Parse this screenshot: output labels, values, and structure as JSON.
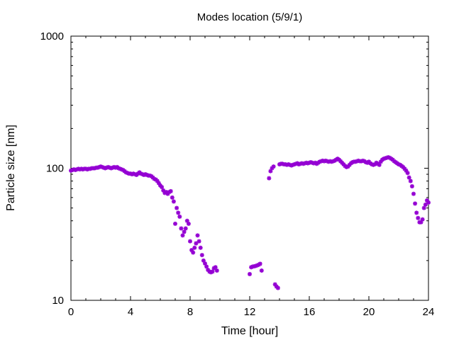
{
  "chart_data": {
    "type": "scatter",
    "title": "Modes location (5/9/1)",
    "xlabel": "Time [hour]",
    "ylabel": "Particle size [nm]",
    "xlim": [
      0,
      24
    ],
    "ylim": [
      10,
      1000
    ],
    "y_scale": "log",
    "x_ticks": [
      "0",
      "4",
      "8",
      "12",
      "16",
      "20",
      "24"
    ],
    "y_ticks": [
      "10",
      "100",
      "1000"
    ],
    "grid": false,
    "legend": "none",
    "marker_color": "#9400D3",
    "series": [
      {
        "points": [
          [
            0.0,
            96
          ],
          [
            0.1,
            97
          ],
          [
            0.2,
            98
          ],
          [
            0.3,
            97
          ],
          [
            0.4,
            98
          ],
          [
            0.5,
            99
          ],
          [
            0.6,
            98
          ],
          [
            0.7,
            99
          ],
          [
            0.8,
            98
          ],
          [
            0.9,
            99
          ],
          [
            1.0,
            99
          ],
          [
            1.1,
            98
          ],
          [
            1.2,
            99
          ],
          [
            1.3,
            99
          ],
          [
            1.4,
            100
          ],
          [
            1.5,
            100
          ],
          [
            1.6,
            100
          ],
          [
            1.7,
            101
          ],
          [
            1.8,
            101
          ],
          [
            1.9,
            102
          ],
          [
            2.0,
            103
          ],
          [
            2.1,
            102
          ],
          [
            2.2,
            101
          ],
          [
            2.3,
            100
          ],
          [
            2.4,
            101
          ],
          [
            2.5,
            102
          ],
          [
            2.6,
            101
          ],
          [
            2.7,
            100
          ],
          [
            2.8,
            101
          ],
          [
            2.9,
            102
          ],
          [
            3.0,
            101
          ],
          [
            3.1,
            102
          ],
          [
            3.2,
            100
          ],
          [
            3.3,
            99
          ],
          [
            3.4,
            98
          ],
          [
            3.5,
            97
          ],
          [
            3.6,
            95
          ],
          [
            3.7,
            93
          ],
          [
            3.8,
            92
          ],
          [
            3.9,
            91
          ],
          [
            4.0,
            91
          ],
          [
            4.1,
            90
          ],
          [
            4.2,
            91
          ],
          [
            4.3,
            90
          ],
          [
            4.4,
            89
          ],
          [
            4.5,
            91
          ],
          [
            4.6,
            93
          ],
          [
            4.7,
            91
          ],
          [
            4.8,
            90
          ],
          [
            4.9,
            89
          ],
          [
            5.0,
            90
          ],
          [
            5.1,
            89
          ],
          [
            5.2,
            88
          ],
          [
            5.3,
            88
          ],
          [
            5.4,
            87
          ],
          [
            5.5,
            85
          ],
          [
            5.6,
            83
          ],
          [
            5.7,
            82
          ],
          [
            5.8,
            80
          ],
          [
            5.9,
            77
          ],
          [
            6.0,
            74
          ],
          [
            6.1,
            72
          ],
          [
            6.2,
            68
          ],
          [
            6.3,
            65
          ],
          [
            6.4,
            66
          ],
          [
            6.5,
            64
          ],
          [
            6.6,
            66
          ],
          [
            6.7,
            67
          ],
          [
            6.8,
            60
          ],
          [
            6.9,
            56
          ],
          [
            7.0,
            38
          ],
          [
            7.1,
            50
          ],
          [
            7.2,
            46
          ],
          [
            7.3,
            43
          ],
          [
            7.4,
            35
          ],
          [
            7.5,
            31
          ],
          [
            7.6,
            33
          ],
          [
            7.7,
            35
          ],
          [
            7.8,
            40
          ],
          [
            7.9,
            38
          ],
          [
            8.0,
            28
          ],
          [
            8.1,
            24
          ],
          [
            8.2,
            23
          ],
          [
            8.3,
            25
          ],
          [
            8.4,
            27
          ],
          [
            8.5,
            31
          ],
          [
            8.6,
            28
          ],
          [
            8.7,
            25
          ],
          [
            8.8,
            22
          ],
          [
            8.9,
            20
          ],
          [
            9.0,
            19
          ],
          [
            9.1,
            18
          ],
          [
            9.2,
            17
          ],
          [
            9.3,
            16.5
          ],
          [
            9.4,
            16.3
          ],
          [
            9.5,
            16.5
          ],
          [
            9.6,
            17.5
          ],
          [
            9.7,
            17.8
          ],
          [
            9.8,
            16.8
          ],
          [
            12.0,
            15.8
          ],
          [
            12.1,
            17.8
          ],
          [
            12.2,
            18.0
          ],
          [
            12.3,
            18.1
          ],
          [
            12.4,
            18.2
          ],
          [
            12.5,
            18.4
          ],
          [
            12.6,
            18.6
          ],
          [
            12.7,
            18.9
          ],
          [
            12.8,
            16.8
          ],
          [
            13.3,
            84
          ],
          [
            13.4,
            95
          ],
          [
            13.5,
            100
          ],
          [
            13.6,
            103
          ],
          [
            13.7,
            13.2
          ],
          [
            13.8,
            12.7
          ],
          [
            13.9,
            12.4
          ],
          [
            14.0,
            107
          ],
          [
            14.1,
            108
          ],
          [
            14.2,
            108
          ],
          [
            14.3,
            107
          ],
          [
            14.4,
            107
          ],
          [
            14.5,
            106
          ],
          [
            14.6,
            107
          ],
          [
            14.7,
            106
          ],
          [
            14.8,
            105
          ],
          [
            14.9,
            106
          ],
          [
            15.0,
            107
          ],
          [
            15.1,
            108
          ],
          [
            15.2,
            109
          ],
          [
            15.3,
            107
          ],
          [
            15.4,
            108
          ],
          [
            15.5,
            109
          ],
          [
            15.6,
            108
          ],
          [
            15.7,
            109
          ],
          [
            15.8,
            110
          ],
          [
            15.9,
            109
          ],
          [
            16.0,
            110
          ],
          [
            16.1,
            111
          ],
          [
            16.2,
            110
          ],
          [
            16.3,
            109
          ],
          [
            16.4,
            110
          ],
          [
            16.5,
            108
          ],
          [
            16.6,
            110
          ],
          [
            16.7,
            112
          ],
          [
            16.8,
            113
          ],
          [
            16.9,
            114
          ],
          [
            17.0,
            113
          ],
          [
            17.1,
            114
          ],
          [
            17.2,
            113
          ],
          [
            17.3,
            112
          ],
          [
            17.4,
            113
          ],
          [
            17.5,
            112
          ],
          [
            17.6,
            113
          ],
          [
            17.7,
            114
          ],
          [
            17.8,
            116
          ],
          [
            17.9,
            118
          ],
          [
            18.0,
            116
          ],
          [
            18.1,
            113
          ],
          [
            18.2,
            110
          ],
          [
            18.3,
            107
          ],
          [
            18.4,
            104
          ],
          [
            18.5,
            102
          ],
          [
            18.6,
            103
          ],
          [
            18.7,
            106
          ],
          [
            18.8,
            109
          ],
          [
            18.9,
            111
          ],
          [
            19.0,
            112
          ],
          [
            19.1,
            112
          ],
          [
            19.2,
            113
          ],
          [
            19.3,
            114
          ],
          [
            19.4,
            113
          ],
          [
            19.5,
            113
          ],
          [
            19.6,
            114
          ],
          [
            19.7,
            113
          ],
          [
            19.8,
            111
          ],
          [
            19.9,
            110
          ],
          [
            20.0,
            112
          ],
          [
            20.1,
            109
          ],
          [
            20.2,
            107
          ],
          [
            20.3,
            106
          ],
          [
            20.4,
            107
          ],
          [
            20.5,
            110
          ],
          [
            20.6,
            108
          ],
          [
            20.7,
            106
          ],
          [
            20.8,
            112
          ],
          [
            20.9,
            116
          ],
          [
            21.0,
            118
          ],
          [
            21.1,
            119
          ],
          [
            21.2,
            120
          ],
          [
            21.3,
            121
          ],
          [
            21.4,
            120
          ],
          [
            21.5,
            118
          ],
          [
            21.6,
            116
          ],
          [
            21.7,
            113
          ],
          [
            21.8,
            111
          ],
          [
            21.9,
            109
          ],
          [
            22.0,
            107
          ],
          [
            22.1,
            106
          ],
          [
            22.2,
            104
          ],
          [
            22.3,
            102
          ],
          [
            22.4,
            99
          ],
          [
            22.5,
            96
          ],
          [
            22.6,
            92
          ],
          [
            22.7,
            85
          ],
          [
            22.8,
            80
          ],
          [
            22.9,
            73
          ],
          [
            23.0,
            64
          ],
          [
            23.1,
            54
          ],
          [
            23.2,
            46
          ],
          [
            23.3,
            42
          ],
          [
            23.4,
            39
          ],
          [
            23.5,
            39
          ],
          [
            23.6,
            41
          ],
          [
            23.7,
            50
          ],
          [
            23.8,
            53
          ],
          [
            23.9,
            57
          ],
          [
            24.0,
            55
          ]
        ]
      }
    ]
  }
}
